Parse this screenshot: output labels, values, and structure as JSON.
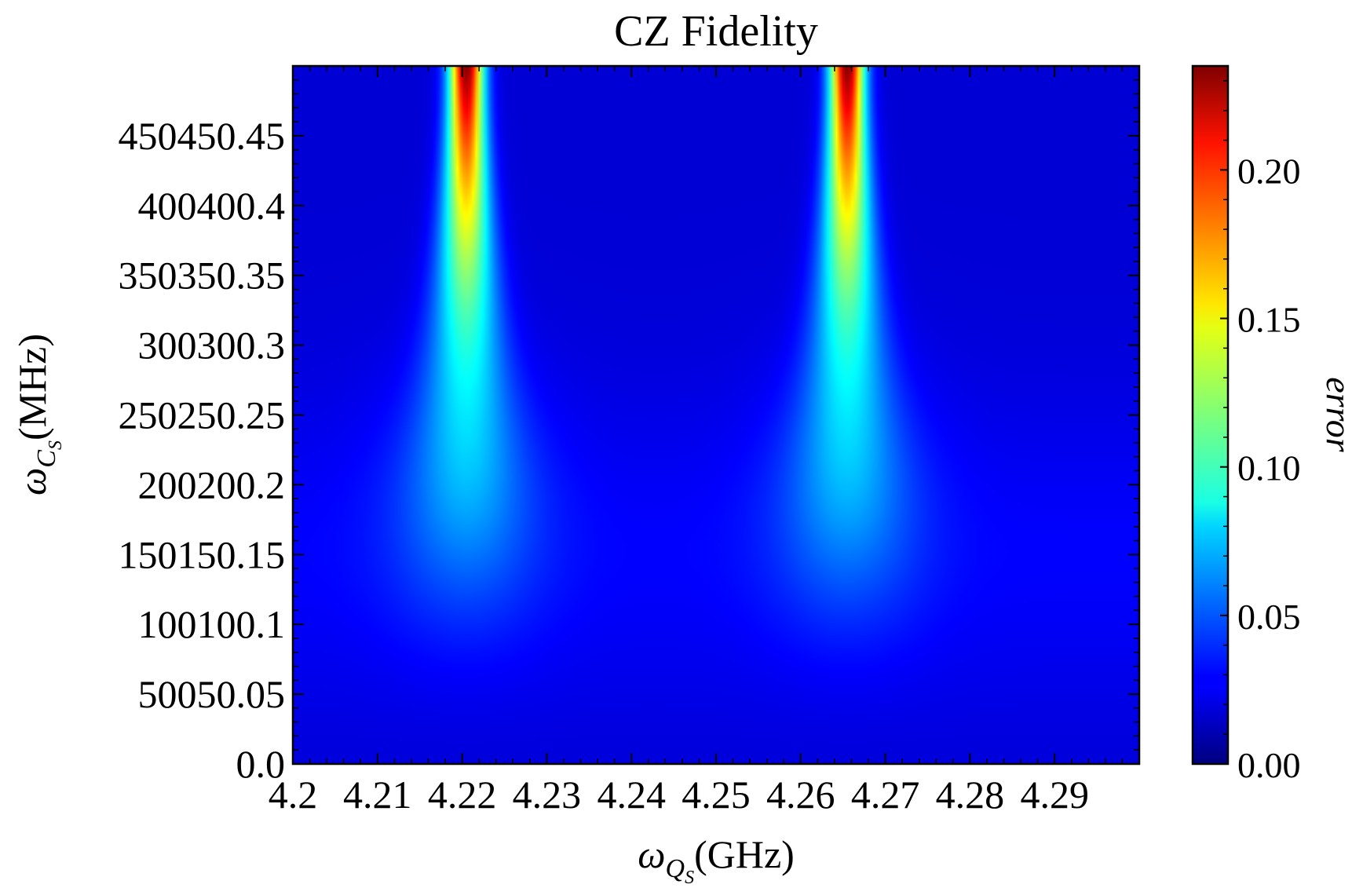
{
  "chart_data": {
    "type": "heatmap",
    "title": "CZ Fidelity",
    "xlabel": {
      "symbol": "ω",
      "subscript": "Q",
      "subsubscript": "S",
      "unit": "(GHz)"
    },
    "ylabel": {
      "symbol": "ω",
      "subscript": "C",
      "subsubscript": "S",
      "unit": "(MHz)"
    },
    "colorbar_label": "error",
    "colormap": "jet",
    "xlim": [
      4.2,
      4.3
    ],
    "ylim": [
      0,
      500
    ],
    "clim": [
      0,
      0.235
    ],
    "x_ticks": [
      {
        "value": 4.2,
        "label": "4.2"
      },
      {
        "value": 4.21,
        "label": "4.21"
      },
      {
        "value": 4.22,
        "label": "4.22"
      },
      {
        "value": 4.23,
        "label": "4.23"
      },
      {
        "value": 4.24,
        "label": "4.24"
      },
      {
        "value": 4.25,
        "label": "4.25"
      },
      {
        "value": 4.26,
        "label": "4.26"
      },
      {
        "value": 4.27,
        "label": "4.27"
      },
      {
        "value": 4.28,
        "label": "4.28"
      },
      {
        "value": 4.29,
        "label": "4.29"
      }
    ],
    "y_ticks": [
      {
        "value": 0,
        "label": "0.0"
      },
      {
        "value": 50,
        "label": "50050.05"
      },
      {
        "value": 100,
        "label": "100100.1"
      },
      {
        "value": 150,
        "label": "150150.15"
      },
      {
        "value": 200,
        "label": "200200.2"
      },
      {
        "value": 250,
        "label": "250250.25"
      },
      {
        "value": 300,
        "label": "300300.3"
      },
      {
        "value": 350,
        "label": "350350.35"
      },
      {
        "value": 400,
        "label": "400400.4"
      },
      {
        "value": 450,
        "label": "450450.45"
      }
    ],
    "colorbar_ticks": [
      {
        "value": 0.0,
        "label": "0.00"
      },
      {
        "value": 0.05,
        "label": "0.05"
      },
      {
        "value": 0.1,
        "label": "0.10"
      },
      {
        "value": 0.15,
        "label": "0.15"
      },
      {
        "value": 0.2,
        "label": "0.20"
      }
    ],
    "features": [
      {
        "x_center": 4.2205,
        "peak_error": 0.23,
        "peak_at_y": 500
      },
      {
        "x_center": 4.2655,
        "peak_error": 0.23,
        "peak_at_y": 500
      }
    ],
    "grid": false
  }
}
